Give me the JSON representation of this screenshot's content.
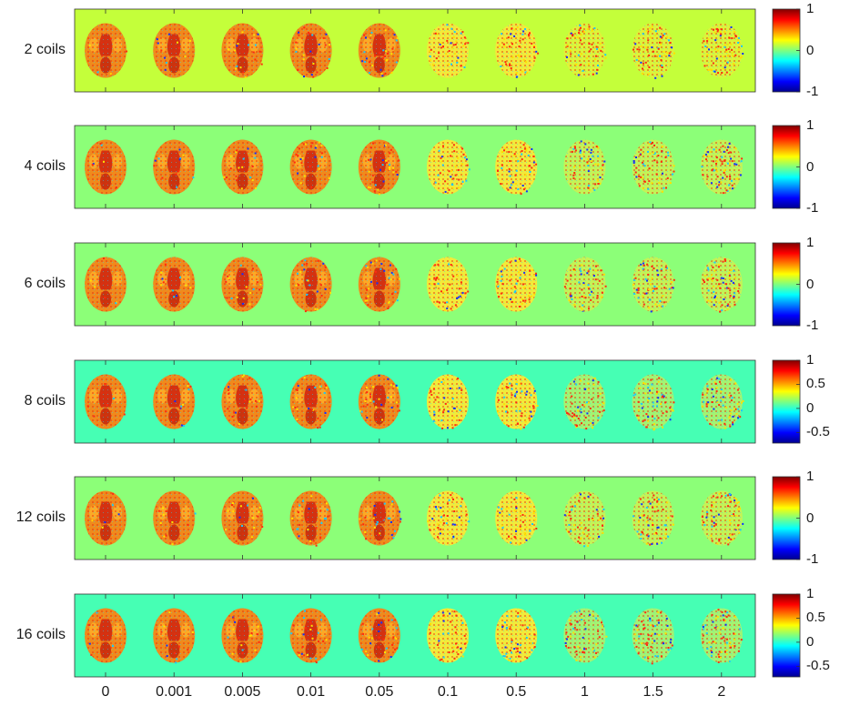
{
  "figure": {
    "columns": [
      "0",
      "0.001",
      "0.005",
      "0.01",
      "0.05",
      "0.1",
      "0.5",
      "1",
      "1.5",
      "2"
    ],
    "rows": [
      {
        "label": "2 coils",
        "background": "#c4ff3a",
        "colorbar_ticks": [
          "1",
          "0",
          "-1"
        ],
        "colorbar_values": [
          1,
          0,
          -1
        ]
      },
      {
        "label": "4 coils",
        "background": "#8cff78",
        "colorbar_ticks": [
          "1",
          "0",
          "-1"
        ],
        "colorbar_values": [
          1,
          0,
          -1
        ]
      },
      {
        "label": "6 coils",
        "background": "#8cff78",
        "colorbar_ticks": [
          "1",
          "0",
          "-1"
        ],
        "colorbar_values": [
          1,
          0,
          -1
        ]
      },
      {
        "label": "8 coils",
        "background": "#46ffb4",
        "colorbar_ticks": [
          "1",
          "0.5",
          "0",
          "-0.5"
        ],
        "colorbar_values": [
          1,
          0.5,
          0,
          -0.5
        ]
      },
      {
        "label": "12 coils",
        "background": "#8cff78",
        "colorbar_ticks": [
          "1",
          "0",
          "-1"
        ],
        "colorbar_values": [
          1,
          0,
          -1
        ]
      },
      {
        "label": "16 coils",
        "background": "#46ffb4",
        "colorbar_ticks": [
          "1",
          "0.5",
          "0",
          "-0.5"
        ],
        "colorbar_values": [
          1,
          0.5,
          0,
          -0.5
        ]
      }
    ],
    "colormap": "jet",
    "brain_color_low_noise": "#f08a1c",
    "brain_color_high_noise": "#f2ea3a"
  }
}
